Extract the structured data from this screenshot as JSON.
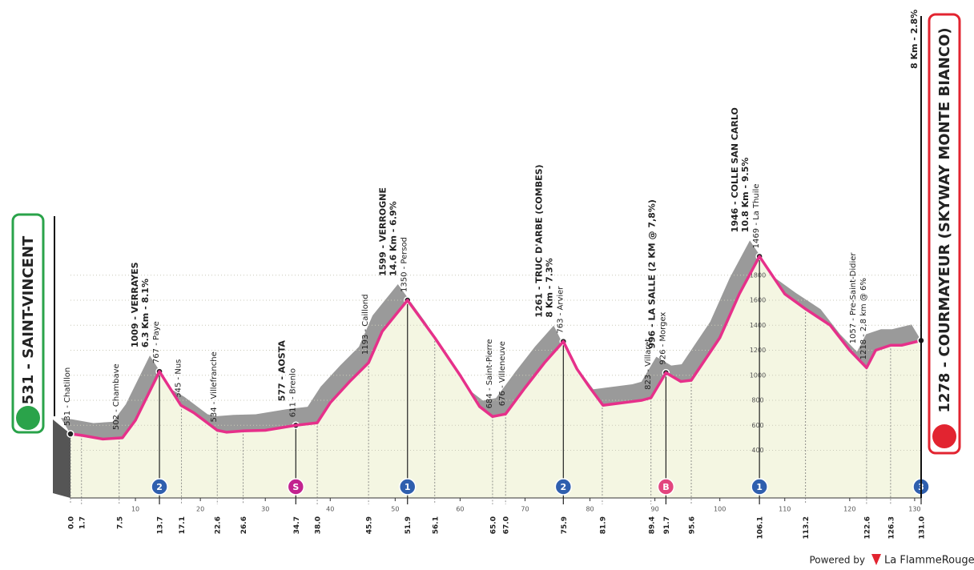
{
  "chart_data": {
    "type": "area",
    "start": "531 - SAINT-VINCENT",
    "finish": "1278 - COURMAYEUR (SKYWAY MONTE BIANCO)",
    "finish_climb": "8 Km - 2.8%",
    "x": [
      0,
      1.7,
      5,
      8,
      10,
      13.7,
      17,
      19,
      22.6,
      24,
      26.6,
      30,
      34.7,
      38,
      40,
      43,
      45.9,
      48,
      51.9,
      56.1,
      60,
      63,
      65,
      67,
      70,
      73,
      75.9,
      78,
      80,
      82,
      85,
      88,
      89.4,
      91.7,
      94,
      95.6,
      100,
      103,
      106.1,
      110,
      113.2,
      117,
      120,
      122.6,
      124,
      126.3,
      128,
      131
    ],
    "values": [
      531,
      520,
      490,
      500,
      640,
      1030,
      760,
      700,
      560,
      545,
      555,
      560,
      600,
      620,
      780,
      950,
      1100,
      1350,
      1600,
      1300,
      1000,
      750,
      670,
      690,
      900,
      1100,
      1270,
      1050,
      900,
      760,
      780,
      800,
      820,
      1020,
      950,
      960,
      1300,
      1650,
      1950,
      1650,
      1530,
      1400,
      1200,
      1060,
      1200,
      1240,
      1240,
      1278
    ],
    "line_color": "#e6308a",
    "shade_color": "#9a9a9a",
    "area_color": "#f4f6e2",
    "xlim": [
      0,
      131
    ],
    "ylim": [
      0,
      4000
    ],
    "xticks": [
      10,
      20,
      30,
      40,
      50,
      60,
      70,
      80,
      90,
      100,
      110,
      120,
      130
    ],
    "yticks": [
      400,
      600,
      800,
      1000,
      1200,
      1400,
      1600,
      1800
    ],
    "waypoints": [
      {
        "km": {
          "value": 0,
          "label": "0.0"
        },
        "labels": [
          "531 - Chatillon"
        ]
      },
      {
        "km": 1.7,
        "labels": []
      },
      {
        "km": 7.5,
        "labels": [
          "502 - Chambave"
        ]
      },
      {
        "km": 13.7,
        "labels": [
          "1009 - VERRAYES",
          "6.3 Km - 8.1%",
          "767 - Paye"
        ],
        "badge": {
          "text": "2",
          "color": "#2f5fae"
        }
      },
      {
        "km": 17.1,
        "labels": [
          "545 - Nus"
        ]
      },
      {
        "km": 22.6,
        "labels": [
          "534 - Villefranche"
        ]
      },
      {
        "km": 26.6,
        "labels": []
      },
      {
        "km": 34.7,
        "labels": [
          "577 - AOSTA",
          "611 - Brenlo"
        ],
        "badge": {
          "text": "S",
          "color": "#c2238f"
        }
      },
      {
        "km": {
          "value": 38,
          "label": "38.0"
        },
        "labels": []
      },
      {
        "km": 45.9,
        "labels": [
          "1193 - Caillond"
        ]
      },
      {
        "km": 51.9,
        "labels": [
          "1599 - VERROGNE",
          "14.6 Km - 6.9%",
          "1350 - Persod"
        ],
        "badge": {
          "text": "1",
          "color": "#2f5fae"
        }
      },
      {
        "km": 56.1,
        "labels": []
      },
      {
        "km": {
          "value": 65,
          "label": "65.0"
        },
        "labels": [
          "684 - Saint-Pierre"
        ]
      },
      {
        "km": {
          "value": 67,
          "label": "67.0"
        },
        "labels": [
          "676 - Villeneuve"
        ]
      },
      {
        "km": 75.9,
        "labels": [
          "1261 - TRUC D'ARBE (COMBES)",
          "8 Km - 7.3%",
          "763 - Arvier"
        ],
        "badge": {
          "text": "2",
          "color": "#2f5fae"
        }
      },
      {
        "km": 81.9,
        "labels": []
      },
      {
        "km": 89.4,
        "labels": [
          "823 - Villaret"
        ]
      },
      {
        "km": 91.7,
        "labels": [
          "996 - LA SALLE (2 KM @ 7,8%)",
          "926 - Morgex"
        ],
        "badge": {
          "text": "B",
          "color": "#e2457e"
        }
      },
      {
        "km": 95.6,
        "labels": []
      },
      {
        "km": 106.1,
        "labels": [
          "1946 - COLLE SAN CARLO",
          "10.8 Km - 9.5%",
          "1469 - La Thuile"
        ],
        "badge": {
          "text": "1",
          "color": "#2f5fae"
        }
      },
      {
        "km": 113.2,
        "labels": []
      },
      {
        "km": 122.6,
        "labels": [
          "1057 - Pre-Saint-Didier",
          "1218 - 2,8 km @ 6%"
        ]
      },
      {
        "km": 126.3,
        "labels": []
      },
      {
        "km": {
          "value": 131,
          "label": "131.0"
        },
        "labels": [],
        "badge": {
          "text": "3",
          "color": "#2f5fae"
        }
      }
    ],
    "footer": "Powered by",
    "brand": "La FlammeRouge"
  }
}
